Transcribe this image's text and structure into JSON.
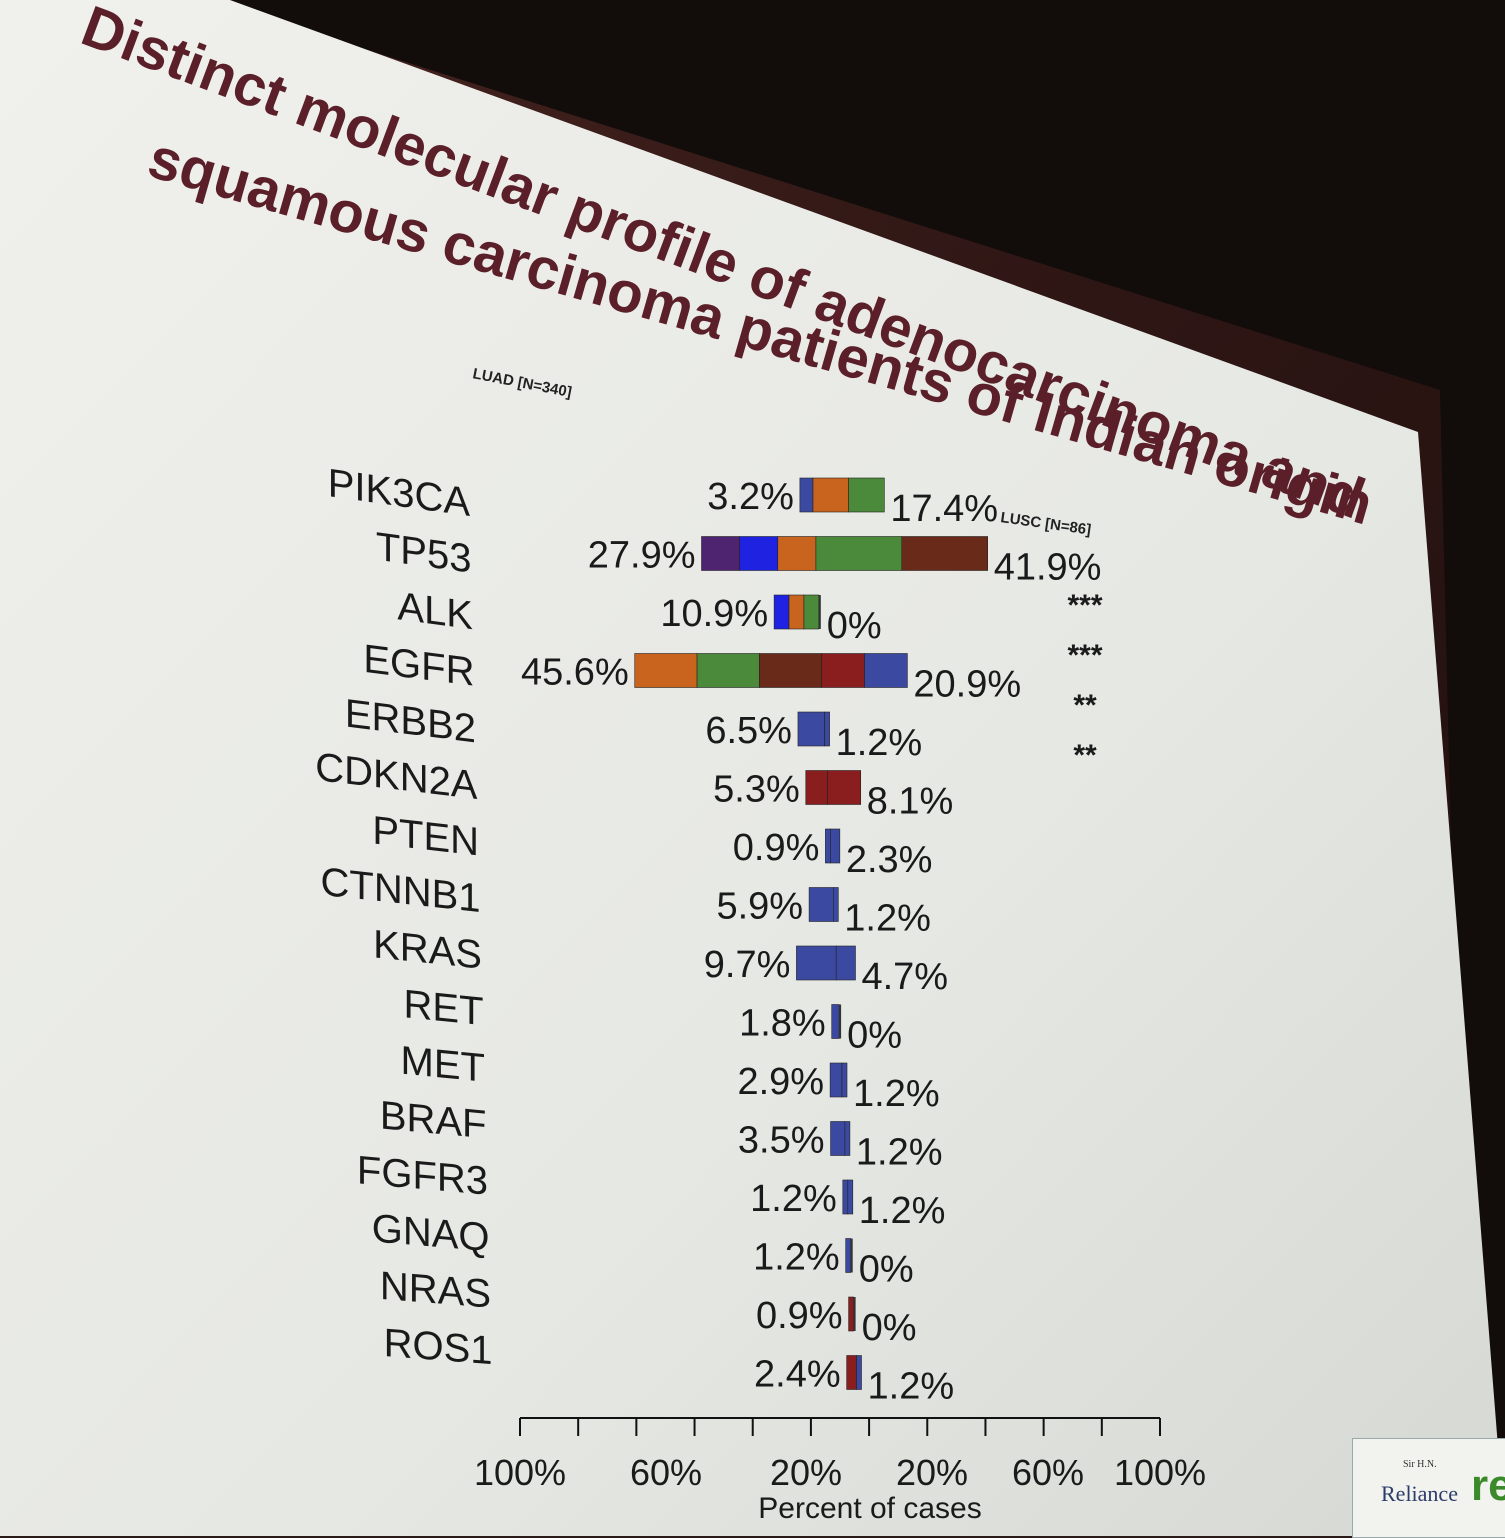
{
  "slide": {
    "title_line1": "Distinct molecular profile of adenocarcinoma and",
    "title_line2": "squamous carcinoma patients of Indian origin"
  },
  "logo": {
    "line1": "Sir H.N.",
    "line2": "Reliance",
    "mark": "re"
  },
  "colors": {
    "blue": "#3b4aa0",
    "bright_blue": "#1f22e0",
    "purple": "#4e2470",
    "brown": "#6a2a1a",
    "red": "#8a1e1e",
    "orange": "#c8641e",
    "green": "#4a8a3a"
  },
  "chart_data": {
    "type": "bar",
    "layout": "back-to-back",
    "left_label": "LUAD [N=340]",
    "right_label": "LUSC [N=86]",
    "xlabel": "Percent of cases",
    "x_ticks": [
      "100%",
      "60%",
      "20%",
      "20%",
      "60%",
      "100%"
    ],
    "xlim": [
      0,
      100
    ],
    "categories": [
      "PIK3CA",
      "TP53",
      "ALK",
      "EGFR",
      "ERBB2",
      "CDKN2A",
      "PTEN",
      "CTNNB1",
      "KRAS",
      "RET",
      "MET",
      "BRAF",
      "FGFR3",
      "GNAQ",
      "NRAS",
      "ROS1"
    ],
    "series": [
      {
        "name": "LUAD [N=340]",
        "values": [
          3.2,
          27.9,
          10.9,
          45.6,
          6.5,
          5.3,
          0.9,
          5.9,
          9.7,
          1.8,
          2.9,
          3.5,
          1.2,
          1.2,
          0.9,
          2.4
        ],
        "labels": [
          "3.2%",
          "27.9%",
          "10.9%",
          "45.6%",
          "6.5%",
          "5.3%",
          "0.9%",
          "5.9%",
          "9.7%",
          "1.8%",
          "2.9%",
          "3.5%",
          "1.2%",
          "1.2%",
          "0.9%",
          "2.4%"
        ]
      },
      {
        "name": "LUSC [N=86]",
        "values": [
          17.4,
          41.9,
          0,
          20.9,
          1.2,
          8.1,
          2.3,
          1.2,
          4.7,
          0,
          1.2,
          1.2,
          1.2,
          0,
          0,
          1.2
        ],
        "labels": [
          "17.4%",
          "41.9%",
          "0%",
          "20.9%",
          "1.2%",
          "8.1%",
          "2.3%",
          "1.2%",
          "4.7%",
          "0%",
          "1.2%",
          "1.2%",
          "1.2%",
          "0%",
          "0%",
          "1.2%"
        ]
      }
    ],
    "significance": [
      "",
      "***",
      "***",
      "**",
      "**",
      "",
      "",
      "",
      "",
      "",
      "",
      "",
      "",
      "",
      "",
      ""
    ]
  }
}
